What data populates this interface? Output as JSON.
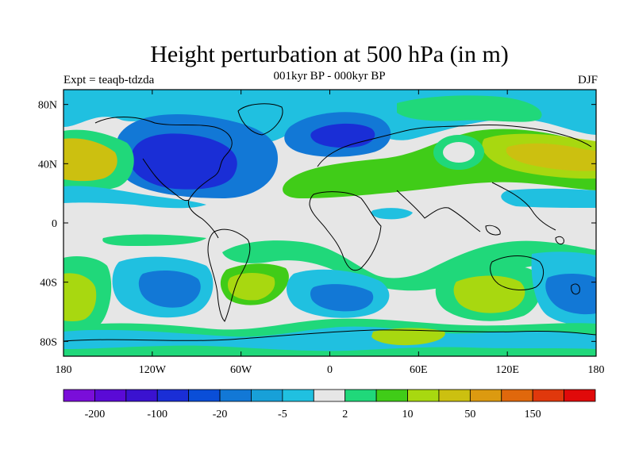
{
  "title": "Height perturbation at 500 hPa (in m)",
  "subtitle": "001kyr BP - 000kyr BP",
  "left_label": "Expt = teaqb-tdzda",
  "right_label": "DJF",
  "axes": {
    "x_ticks": [
      "180",
      "120W",
      "60W",
      "0",
      "60E",
      "120E",
      "180"
    ],
    "y_ticks": [
      "80N",
      "40N",
      "0",
      "40S",
      "80S"
    ]
  },
  "colorbar": {
    "colors": [
      "#7a0ed9",
      "#5a0ad6",
      "#3a12d0",
      "#1a2ed6",
      "#0a4ed8",
      "#1278d6",
      "#18a0d8",
      "#20c0e0",
      "#e6e6e6",
      "#20d87a",
      "#40cc18",
      "#a8d810",
      "#ccc010",
      "#dc9a10",
      "#e0680c",
      "#e0380c",
      "#e00a0a"
    ],
    "labels": [
      "-200",
      "-100",
      "-20",
      "-5",
      "2",
      "10",
      "50",
      "150"
    ]
  },
  "map": {
    "background": "#e6e6e6",
    "regions": [
      {
        "color": "#20c0e0",
        "note": "northern high-latitude negative band"
      },
      {
        "color": "#1278d6",
        "note": "north america trough"
      },
      {
        "color": "#1a2ed6",
        "note": "north america trough core"
      },
      {
        "color": "#20d87a",
        "note": "subtropical positive bands"
      },
      {
        "color": "#40cc18",
        "note": "eurasia ridge"
      },
      {
        "color": "#a8d810",
        "note": "ridges"
      },
      {
        "color": "#ccc010",
        "note": "ridge cores"
      }
    ]
  }
}
